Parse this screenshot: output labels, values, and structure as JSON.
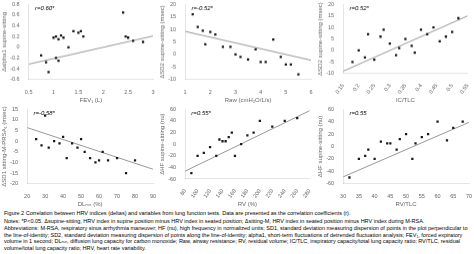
{
  "chart_data": [
    {
      "type": "scatter",
      "annotations": [
        {
          "text": "r=0.60*"
        }
      ],
      "xlabel": "FEV₁ (L)",
      "ylabel": "Δalpha1 supine-sitting",
      "xlim": [
        0.5,
        3.0
      ],
      "ylim": [
        -0.6,
        0.8
      ],
      "xticks": [
        0.5,
        1.0,
        1.5,
        2.0,
        2.5,
        3.0
      ],
      "yticks": [
        -0.6,
        -0.4,
        -0.2,
        0.0,
        0.2,
        0.4,
        0.6,
        0.8
      ],
      "grid": false,
      "series": [
        {
          "type": "scatter",
          "marker": "square",
          "color": "#1a1a1a",
          "x": [
            0.75,
            0.85,
            0.9,
            1.0,
            1.05,
            1.05,
            1.1,
            1.1,
            1.15,
            1.2,
            1.3,
            1.4,
            1.5,
            1.55,
            1.6,
            2.4,
            2.45,
            2.5,
            2.6,
            2.8
          ],
          "values": [
            -0.15,
            -0.28,
            -0.46,
            0.18,
            0.2,
            -0.2,
            0.15,
            -0.25,
            0.22,
            0.18,
            0.0,
            0.3,
            0.27,
            0.3,
            0.2,
            0.65,
            0.2,
            0.18,
            0.12,
            0.1
          ]
        },
        {
          "type": "line",
          "marker": "none",
          "color": "#999999",
          "x": [
            0.5,
            3.0
          ],
          "values": [
            -0.315,
            0.21
          ]
        }
      ]
    },
    {
      "type": "scatter",
      "annotations": [
        {
          "text": "r=-0.52*"
        }
      ],
      "xlabel": "Raw (cmH₂O/L/s)",
      "ylabel": "ΔSD2 supine-sitting (msec)",
      "xlim": [
        1,
        6
      ],
      "ylim": [
        -10,
        20
      ],
      "xticks": [
        1,
        2,
        3,
        4,
        5,
        6
      ],
      "yticks": [
        -10,
        -5,
        0,
        5,
        10,
        15,
        20
      ],
      "grid": false,
      "series": [
        {
          "type": "scatter",
          "marker": "square",
          "color": "#1a1a1a",
          "x": [
            1.3,
            1.5,
            1.7,
            1.8,
            2.0,
            2.2,
            2.5,
            2.8,
            3.0,
            3.2,
            3.5,
            3.8,
            4.0,
            4.2,
            4.5,
            4.8,
            5.0,
            5.2,
            5.5
          ],
          "values": [
            16,
            11,
            9.5,
            4,
            9,
            8,
            3,
            3,
            0,
            -1,
            -2,
            2,
            -3,
            -3,
            6,
            -1,
            -4,
            -4,
            -8
          ]
        },
        {
          "type": "line",
          "marker": "none",
          "color": "#999999",
          "x": [
            1,
            6
          ],
          "values": [
            9.2,
            -2.3
          ]
        }
      ]
    },
    {
      "type": "scatter",
      "annotations": [
        {
          "text": "r=0.52*"
        }
      ],
      "xlabel": "IC/TLC",
      "ylabel": "ΔSD2 supine-sitting (msec)",
      "xlim": [
        0.15,
        0.55
      ],
      "ylim": [
        -10,
        20
      ],
      "xticks": [
        0.15,
        0.2,
        0.25,
        0.3,
        0.35,
        0.4,
        0.45,
        0.5,
        0.55
      ],
      "yticks": [
        -10,
        -5,
        0,
        5,
        10,
        15,
        20
      ],
      "grid": false,
      "series": [
        {
          "type": "scatter",
          "marker": "square",
          "color": "#1a1a1a",
          "x": [
            0.18,
            0.2,
            0.22,
            0.23,
            0.25,
            0.27,
            0.28,
            0.3,
            0.32,
            0.33,
            0.35,
            0.37,
            0.38,
            0.4,
            0.42,
            0.44,
            0.46,
            0.48,
            0.5,
            0.52
          ],
          "values": [
            -5,
            0,
            -3,
            7,
            -4,
            6,
            9,
            3,
            -2,
            1,
            5,
            2,
            -1,
            9,
            7,
            10,
            4,
            6,
            8,
            14
          ]
        },
        {
          "type": "line",
          "marker": "none",
          "color": "#999999",
          "x": [
            0.15,
            0.55
          ],
          "values": [
            -9,
            15
          ]
        }
      ]
    },
    {
      "type": "scatter",
      "annotations": [
        {
          "text": "r=-0.58*"
        }
      ],
      "xlabel": "DLₘₙ (%)",
      "ylabel": "ΔSD1 sitting-M-PRSA₁ (msec)",
      "xlim": [
        20,
        90
      ],
      "ylim": [
        -20,
        15
      ],
      "xticks": [
        20,
        30,
        40,
        50,
        60,
        70,
        80,
        90
      ],
      "yticks": [
        -20,
        -15,
        -10,
        -5,
        0,
        5,
        10,
        15
      ],
      "grid": false,
      "series": [
        {
          "type": "scatter",
          "marker": "square",
          "color": "#1a1a1a",
          "x": [
            25,
            28,
            30,
            32,
            35,
            38,
            40,
            42,
            45,
            48,
            50,
            52,
            55,
            58,
            60,
            62,
            65,
            70,
            75,
            80
          ],
          "values": [
            1,
            -2,
            12,
            -3,
            0,
            -1,
            2,
            -8,
            -1,
            -3,
            1,
            -5,
            -8,
            -10,
            -9,
            -5,
            -9,
            -8,
            -15,
            -9
          ]
        },
        {
          "type": "line",
          "marker": "none",
          "color": "#999999",
          "x": [
            20,
            90
          ],
          "values": [
            6.4,
            -13.2
          ]
        }
      ]
    },
    {
      "type": "scatter",
      "annotations": [
        {
          "text": "r=0.55*"
        }
      ],
      "xlabel": "RV (%)",
      "ylabel": "ΔHF supine-sitting (nu)",
      "xlim": [
        80,
        280
      ],
      "ylim": [
        -60,
        60
      ],
      "xticks": [
        80,
        100,
        120,
        140,
        160,
        180,
        200,
        220,
        240,
        260,
        280
      ],
      "yticks": [
        -60,
        -40,
        -20,
        0,
        20,
        40,
        60
      ],
      "grid": false,
      "series": [
        {
          "type": "scatter",
          "marker": "square",
          "color": "#1a1a1a",
          "x": [
            90,
            100,
            110,
            120,
            130,
            135,
            140,
            145,
            150,
            155,
            160,
            170,
            180,
            190,
            200,
            220,
            240,
            260
          ],
          "values": [
            -50,
            -20,
            -15,
            -5,
            -20,
            8,
            5,
            5,
            12,
            20,
            -20,
            0,
            15,
            20,
            40,
            30,
            40,
            45
          ]
        },
        {
          "type": "line",
          "marker": "none",
          "color": "#999999",
          "x": [
            80,
            280
          ],
          "values": [
            -46.4,
            57.6
          ]
        }
      ]
    },
    {
      "type": "scatter",
      "annotations": [
        {
          "text": "r=0.55"
        }
      ],
      "xlabel": "RV/TLC",
      "ylabel": "ΔHF supine-sitting (nu)",
      "xlim": [
        30,
        70
      ],
      "ylim": [
        -60,
        60
      ],
      "xticks": [
        30,
        35,
        40,
        45,
        50,
        55,
        60,
        65,
        70
      ],
      "yticks": [
        -60,
        -40,
        -20,
        0,
        20,
        40,
        60
      ],
      "grid": false,
      "series": [
        {
          "type": "scatter",
          "marker": "square",
          "color": "#1a1a1a",
          "x": [
            32,
            35,
            37,
            38,
            40,
            42,
            44,
            45,
            47,
            48,
            50,
            52,
            53,
            55,
            57,
            60,
            63,
            65,
            68
          ],
          "values": [
            -50,
            -20,
            -15,
            -5,
            -20,
            8,
            5,
            5,
            -5,
            12,
            20,
            -20,
            5,
            15,
            20,
            40,
            10,
            30,
            40
          ]
        },
        {
          "type": "line",
          "marker": "none",
          "color": "#999999",
          "x": [
            30,
            70
          ],
          "values": [
            -49,
            39
          ]
        }
      ]
    }
  ],
  "caption": [
    "Figure 2 Correlation between HRV indices (deltas) and variables from lung function tests. Data are presented as the correlation coefficients (r).",
    "Notes: *P<0.05. Δsupine-sitting, HRV index in supine position minus HRV index in seated position; Δsitting-M, HRV index in seated position minus HRV index during M-RSA.",
    "Abbreviations: M-RSA, respiratory sinus arrhythmia maneuver; HF (nu), high frequency in normalized units; SD1, standard deviation measuring dispersion of points in the plot perpendicular to the line-of-identity; SD2, standard deviation measuring dispersion of points along the line-of-identity; alpha1, short-term fluctuations of detrended fluctuation analysis; FEV₁, forced expiratory volume in 1 second; DLₘₙ, diffusion lung capacity for carbon monoxide; Raw, airway resistance; RV, residual volume; IC/TLC, inspiratory capacity/total lung capacity ratio; RV/TLC, residual volume/total lung capacity ratio; HRV, heart rate variability."
  ]
}
